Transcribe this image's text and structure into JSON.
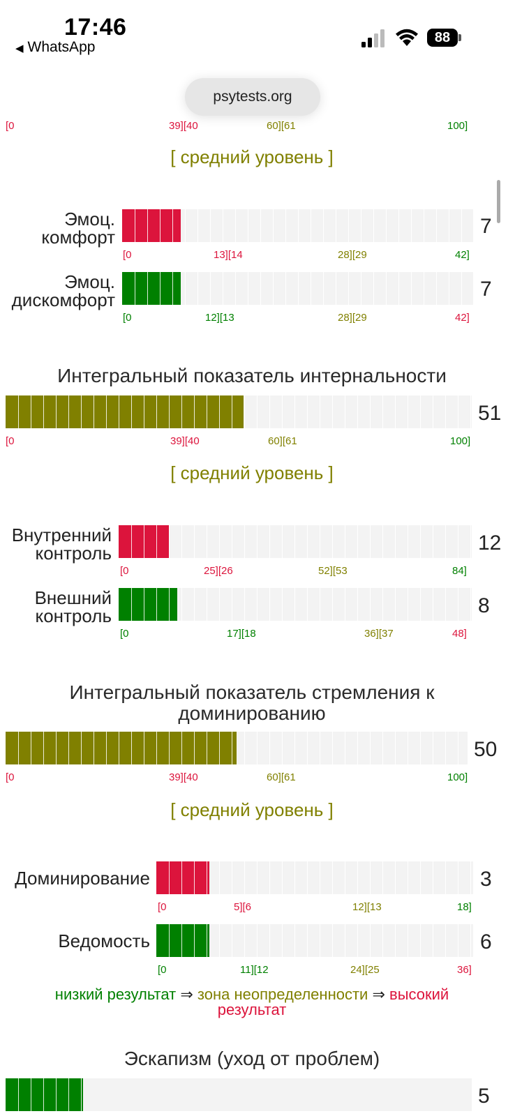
{
  "status_bar": {
    "time": "17:46",
    "back_app": "WhatsApp",
    "battery": "88"
  },
  "browser": {
    "url": "psytests.org"
  },
  "colors": {
    "low": "#dc143c",
    "mid": "#808000",
    "high": "#008000"
  },
  "top_scale": [
    "[0",
    "39][40",
    "60][61",
    "100]"
  ],
  "levels": {
    "average": "[ средний уровень ]"
  },
  "emotional": {
    "rows": [
      {
        "label_1": "Эмоц.",
        "label_2": "комфорт",
        "score": "7",
        "value": 7,
        "max": 42,
        "color": "#dc143c",
        "scale": [
          "[0",
          "13][14",
          "28][29",
          "42]"
        ]
      },
      {
        "label_1": "Эмоц.",
        "label_2": "дискомфорт",
        "score": "7",
        "value": 7,
        "max": 42,
        "color": "#008000",
        "scale": [
          "[0",
          "12][13",
          "28][29",
          "42]"
        ]
      }
    ]
  },
  "internality": {
    "title": "Интегральный показатель интернальности",
    "score": "51",
    "value": 51,
    "max": 100,
    "scale": [
      "[0",
      "39][40",
      "60][61",
      "100]"
    ],
    "rows": [
      {
        "label_1": "Внутренний",
        "label_2": "контроль",
        "score": "12",
        "value": 12,
        "max": 84,
        "color": "#dc143c",
        "scale": [
          "[0",
          "25][26",
          "52][53",
          "84]"
        ]
      },
      {
        "label_1": "Внешний",
        "label_2": "контроль",
        "score": "8",
        "value": 8,
        "max": 48,
        "color": "#008000",
        "scale": [
          "[0",
          "17][18",
          "36][37",
          "48]"
        ]
      }
    ]
  },
  "dominance": {
    "title_1": "Интегральный показатель стремления к",
    "title_2": "доминированию",
    "score": "50",
    "value": 50,
    "max": 100,
    "scale": [
      "[0",
      "39][40",
      "60][61",
      "100]"
    ],
    "rows": [
      {
        "label_1": "Доминирование",
        "score": "3",
        "value": 3,
        "max": 18,
        "color": "#dc143c",
        "scale": [
          "[0",
          "5][6",
          "12][13",
          "18]"
        ]
      },
      {
        "label_1": "Ведомость",
        "score": "6",
        "value": 6,
        "max": 36,
        "color": "#008000",
        "scale": [
          "[0",
          "11][12",
          "24][25",
          "36]"
        ]
      }
    ]
  },
  "legend": {
    "low": "низкий результат",
    "arrow": "⇒",
    "mid": "зона неопределенности",
    "high_1": "высокий",
    "high_2": "результат"
  },
  "escapism": {
    "title": "Эскапизм (уход от проблем)",
    "score": "5",
    "value": 5,
    "color": "#008000"
  }
}
